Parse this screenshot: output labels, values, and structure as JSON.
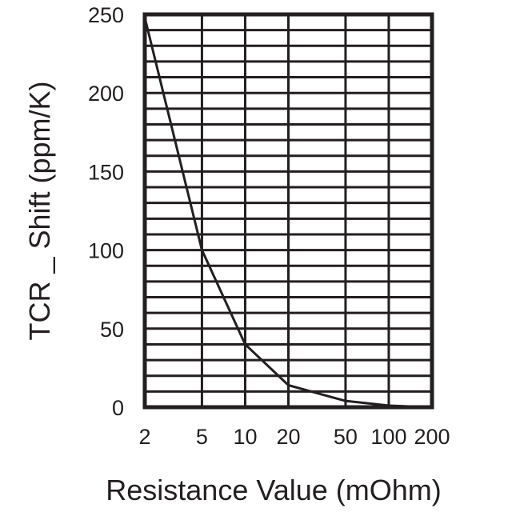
{
  "chart_data": {
    "type": "line",
    "xscale": "log",
    "xlabel": "Resistance Value (mOhm)",
    "ylabel": "TCR _ Shift (ppm/K)",
    "xlim": [
      2,
      200
    ],
    "ylim": [
      0,
      250
    ],
    "x_ticks": [
      "2",
      "5",
      "10",
      "20",
      "50",
      "100",
      "200"
    ],
    "y_ticks": [
      "0",
      "50",
      "100",
      "150",
      "200",
      "250"
    ],
    "grid": true,
    "series": [
      {
        "x": [
          2,
          5,
          10,
          20,
          50,
          100,
          200
        ],
        "y": [
          248,
          100,
          40,
          14,
          4,
          1,
          0
        ]
      }
    ]
  }
}
